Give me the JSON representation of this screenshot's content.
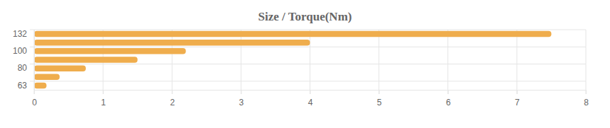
{
  "chart_data": {
    "type": "bar",
    "title": "Size / Torque(Nm)",
    "orientation": "horizontal",
    "categories": [
      "132",
      null,
      "100",
      null,
      "80",
      null,
      "63"
    ],
    "values": [
      7.5,
      4,
      2.2,
      1.5,
      0.75,
      0.37,
      0.18
    ],
    "color": "#efad4d",
    "xlim": [
      0,
      8
    ],
    "xticks": [
      0,
      1,
      2,
      3,
      4,
      5,
      6,
      7,
      8
    ],
    "grid": true
  }
}
